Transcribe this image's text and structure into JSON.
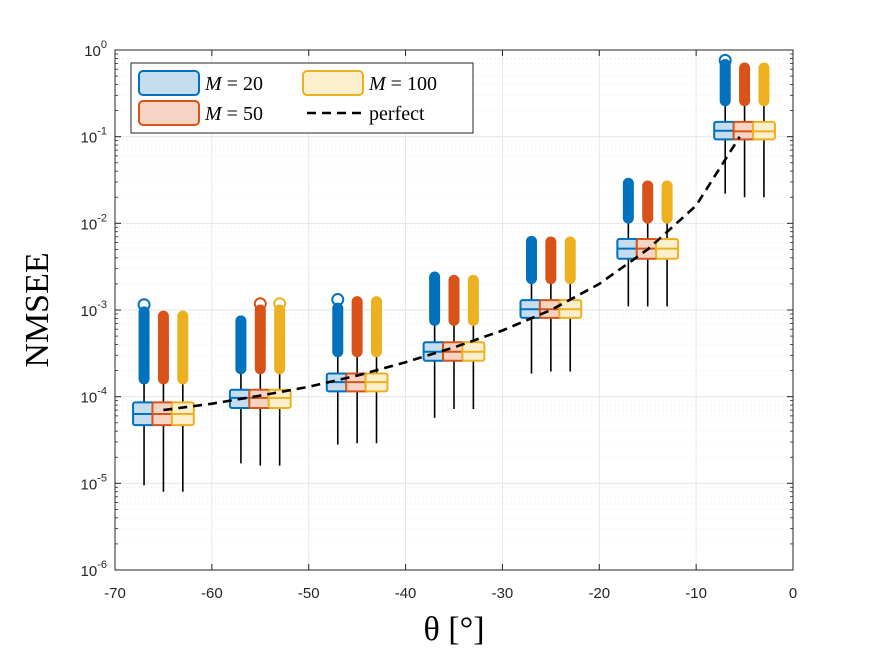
{
  "chart_data": {
    "type": "boxplot",
    "title": "",
    "xlabel": "θ [°]",
    "ylabel": "NMSEE",
    "yscale": "log",
    "xlim": [
      -70,
      0
    ],
    "ylim": [
      1e-06,
      1
    ],
    "grid": true,
    "x_ticks": [
      -70,
      -60,
      -50,
      -40,
      -30,
      -20,
      -10,
      0
    ],
    "x_tick_labels": [
      "-70",
      "-60",
      "-50",
      "-40",
      "-30",
      "-20",
      "-10",
      "0"
    ],
    "y_ticks": [
      {
        "value": 1e-06,
        "base": "10",
        "exp": "-6"
      },
      {
        "value": 1e-05,
        "base": "10",
        "exp": "-5"
      },
      {
        "value": 0.0001,
        "base": "10",
        "exp": "-4"
      },
      {
        "value": 0.001,
        "base": "10",
        "exp": "-3"
      },
      {
        "value": 0.01,
        "base": "10",
        "exp": "-2"
      },
      {
        "value": 0.1,
        "base": "10",
        "exp": "-1"
      },
      {
        "value": 1,
        "base": "10",
        "exp": "0"
      }
    ],
    "groups": [
      -65,
      -55,
      -45,
      -35,
      -25,
      -15,
      -5
    ],
    "series": [
      {
        "name": "M = 20",
        "legend_label": "M = 20",
        "edge": "#0072BD",
        "fill": "#C6DCEF",
        "offset": -2,
        "boxes": [
          {
            "x": -67,
            "whislo": 9.5e-06,
            "q1": 4.7e-05,
            "med": 6.3e-05,
            "q3": 8.6e-05,
            "whishi": 0.00015,
            "out_lo": 0.00016,
            "out_hi": 0.00095,
            "extra": [
              0.00115
            ]
          },
          {
            "x": -57,
            "whislo": 1.7e-05,
            "q1": 7.4e-05,
            "med": 9.7e-05,
            "q3": 0.00012,
            "whishi": 0.0002,
            "out_lo": 0.00021,
            "out_hi": 0.00075,
            "extra": []
          },
          {
            "x": -47,
            "whislo": 2.8e-05,
            "q1": 0.000115,
            "med": 0.000147,
            "q3": 0.000185,
            "whishi": 0.00032,
            "out_lo": 0.00033,
            "out_hi": 0.00105,
            "extra": [
              0.00132
            ]
          },
          {
            "x": -37,
            "whislo": 5.7e-05,
            "q1": 0.00026,
            "med": 0.00033,
            "q3": 0.000425,
            "whishi": 0.00074,
            "out_lo": 0.00076,
            "out_hi": 0.0024,
            "extra": []
          },
          {
            "x": -27,
            "whislo": 0.000185,
            "q1": 0.00081,
            "med": 0.00102,
            "q3": 0.0013,
            "whishi": 0.0022,
            "out_lo": 0.0023,
            "out_hi": 0.0062,
            "extra": []
          },
          {
            "x": -17,
            "whislo": 0.0011,
            "q1": 0.0039,
            "med": 0.0051,
            "q3": 0.0066,
            "whishi": 0.011,
            "out_lo": 0.0115,
            "out_hi": 0.029,
            "extra": []
          },
          {
            "x": -7,
            "whislo": 0.022,
            "q1": 0.093,
            "med": 0.117,
            "q3": 0.148,
            "whishi": 0.25,
            "out_lo": 0.26,
            "out_hi": 0.68,
            "extra": [
              0.76
            ]
          }
        ]
      },
      {
        "name": "M = 50",
        "legend_label": "M = 50",
        "edge": "#D95319",
        "fill": "#F6D4C4",
        "offset": 0,
        "boxes": [
          {
            "x": -65,
            "whislo": 8e-06,
            "q1": 4.7e-05,
            "med": 6.3e-05,
            "q3": 8.6e-05,
            "whishi": 0.00015,
            "out_lo": 0.00016,
            "out_hi": 0.00085,
            "extra": []
          },
          {
            "x": -55,
            "whislo": 1.6e-05,
            "q1": 7.4e-05,
            "med": 9.7e-05,
            "q3": 0.00012,
            "whishi": 0.0002,
            "out_lo": 0.00021,
            "out_hi": 0.001,
            "extra": [
              0.00118
            ]
          },
          {
            "x": -45,
            "whislo": 2.9e-05,
            "q1": 0.000115,
            "med": 0.000147,
            "q3": 0.000185,
            "whishi": 0.00032,
            "out_lo": 0.00033,
            "out_hi": 0.00125,
            "extra": []
          },
          {
            "x": -35,
            "whislo": 7.2e-05,
            "q1": 0.00026,
            "med": 0.00033,
            "q3": 0.000425,
            "whishi": 0.00074,
            "out_lo": 0.00076,
            "out_hi": 0.0022,
            "extra": []
          },
          {
            "x": -25,
            "whislo": 0.000195,
            "q1": 0.00081,
            "med": 0.00102,
            "q3": 0.0013,
            "whishi": 0.0022,
            "out_lo": 0.0023,
            "out_hi": 0.0061,
            "extra": []
          },
          {
            "x": -15,
            "whislo": 0.0011,
            "q1": 0.0039,
            "med": 0.0051,
            "q3": 0.0066,
            "whishi": 0.011,
            "out_lo": 0.0115,
            "out_hi": 0.027,
            "extra": []
          },
          {
            "x": -5,
            "whislo": 0.02,
            "q1": 0.093,
            "med": 0.115,
            "q3": 0.148,
            "whishi": 0.25,
            "out_lo": 0.26,
            "out_hi": 0.62,
            "extra": []
          }
        ]
      },
      {
        "name": "M = 100",
        "legend_label": "M = 100",
        "edge": "#EDB120",
        "fill": "#FBEFCD",
        "offset": 2,
        "boxes": [
          {
            "x": -63,
            "whislo": 8e-06,
            "q1": 4.7e-05,
            "med": 6.3e-05,
            "q3": 8.6e-05,
            "whishi": 0.00015,
            "out_lo": 0.00016,
            "out_hi": 0.00085,
            "extra": []
          },
          {
            "x": -53,
            "whislo": 1.6e-05,
            "q1": 7.4e-05,
            "med": 9.7e-05,
            "q3": 0.00012,
            "whishi": 0.0002,
            "out_lo": 0.00021,
            "out_hi": 0.001,
            "extra": [
              0.00118
            ]
          },
          {
            "x": -43,
            "whislo": 2.9e-05,
            "q1": 0.000115,
            "med": 0.000147,
            "q3": 0.000185,
            "whishi": 0.00032,
            "out_lo": 0.00033,
            "out_hi": 0.00125,
            "extra": []
          },
          {
            "x": -33,
            "whislo": 7.2e-05,
            "q1": 0.00026,
            "med": 0.00033,
            "q3": 0.000425,
            "whishi": 0.00074,
            "out_lo": 0.00076,
            "out_hi": 0.0022,
            "extra": []
          },
          {
            "x": -23,
            "whislo": 0.000195,
            "q1": 0.00081,
            "med": 0.00102,
            "q3": 0.0013,
            "whishi": 0.0022,
            "out_lo": 0.0023,
            "out_hi": 0.0061,
            "extra": []
          },
          {
            "x": -13,
            "whislo": 0.0011,
            "q1": 0.0039,
            "med": 0.0051,
            "q3": 0.0066,
            "whishi": 0.011,
            "out_lo": 0.0115,
            "out_hi": 0.027,
            "extra": []
          },
          {
            "x": -3,
            "whislo": 0.02,
            "q1": 0.093,
            "med": 0.115,
            "q3": 0.148,
            "whishi": 0.25,
            "out_lo": 0.26,
            "out_hi": 0.62,
            "extra": []
          }
        ]
      }
    ],
    "perfect": {
      "name": "perfect",
      "legend_label": "perfect",
      "color": "#000000",
      "x": [
        -65,
        -60,
        -55,
        -50,
        -45,
        -40,
        -35,
        -30,
        -25,
        -20,
        -15,
        -10,
        -5.5
      ],
      "y": [
        7e-05,
        8.3e-05,
        0.000103,
        0.00013,
        0.000175,
        0.00025,
        0.00037,
        0.00058,
        0.001,
        0.002,
        0.005,
        0.016,
        0.1
      ]
    },
    "legend": {
      "placement": "top-left",
      "entries": [
        {
          "label_var": "M",
          "label_rest": " = 20",
          "series": 0
        },
        {
          "label_var": "M",
          "label_rest": " = 100",
          "series": 2
        },
        {
          "label_var": "M",
          "label_rest": " = 50",
          "series": 1
        },
        {
          "label_var": "",
          "label_rest": "perfect",
          "series": -1
        }
      ]
    }
  }
}
